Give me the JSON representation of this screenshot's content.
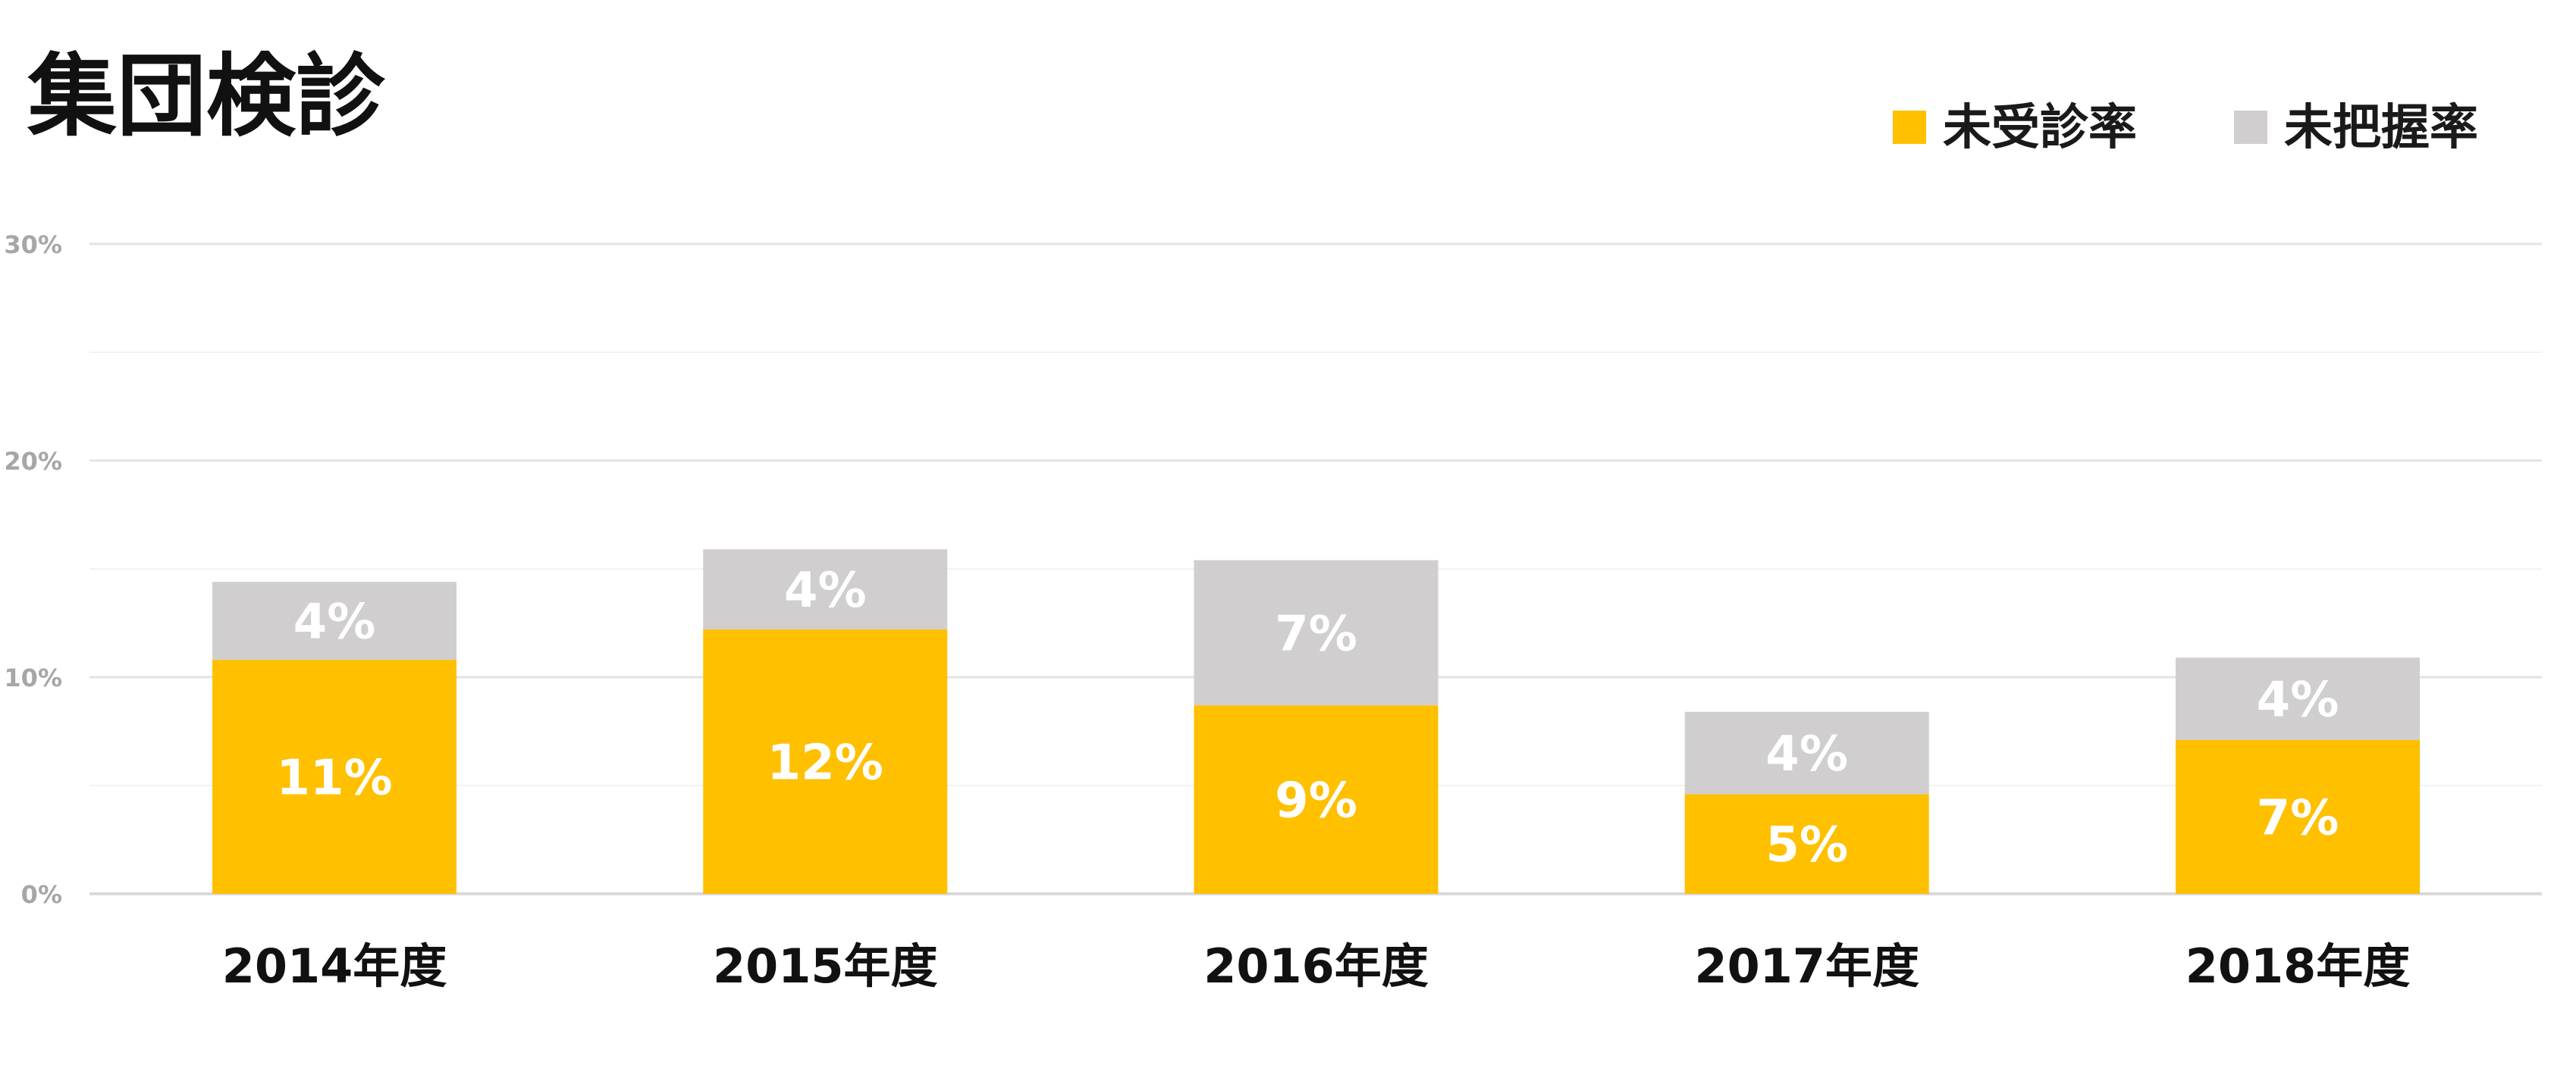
{
  "chart_data": {
    "type": "bar",
    "stacked": true,
    "title": "集団検診",
    "categories": [
      "2014年度",
      "2015年度",
      "2016年度",
      "2017年度",
      "2018年度"
    ],
    "series": [
      {
        "name": "未受診率",
        "color": "#FFC000",
        "values": [
          10.8,
          12.2,
          8.7,
          4.6,
          7.1
        ],
        "labels": [
          "11%",
          "12%",
          "9%",
          "5%",
          "7%"
        ]
      },
      {
        "name": "未把握率",
        "color": "#D0CECE",
        "values": [
          3.6,
          3.7,
          6.7,
          3.8,
          3.8
        ],
        "labels": [
          "4%",
          "4%",
          "7%",
          "4%",
          "4%"
        ]
      }
    ],
    "ylim": [
      0,
      30
    ],
    "yticks": [
      0,
      10,
      20,
      30
    ],
    "ytick_labels": [
      "0%",
      "10%",
      "20%",
      "30%"
    ],
    "minor_gridlines": [
      5,
      15,
      25
    ],
    "grid": true,
    "legend": "top-right",
    "xlabel": "",
    "ylabel": ""
  }
}
